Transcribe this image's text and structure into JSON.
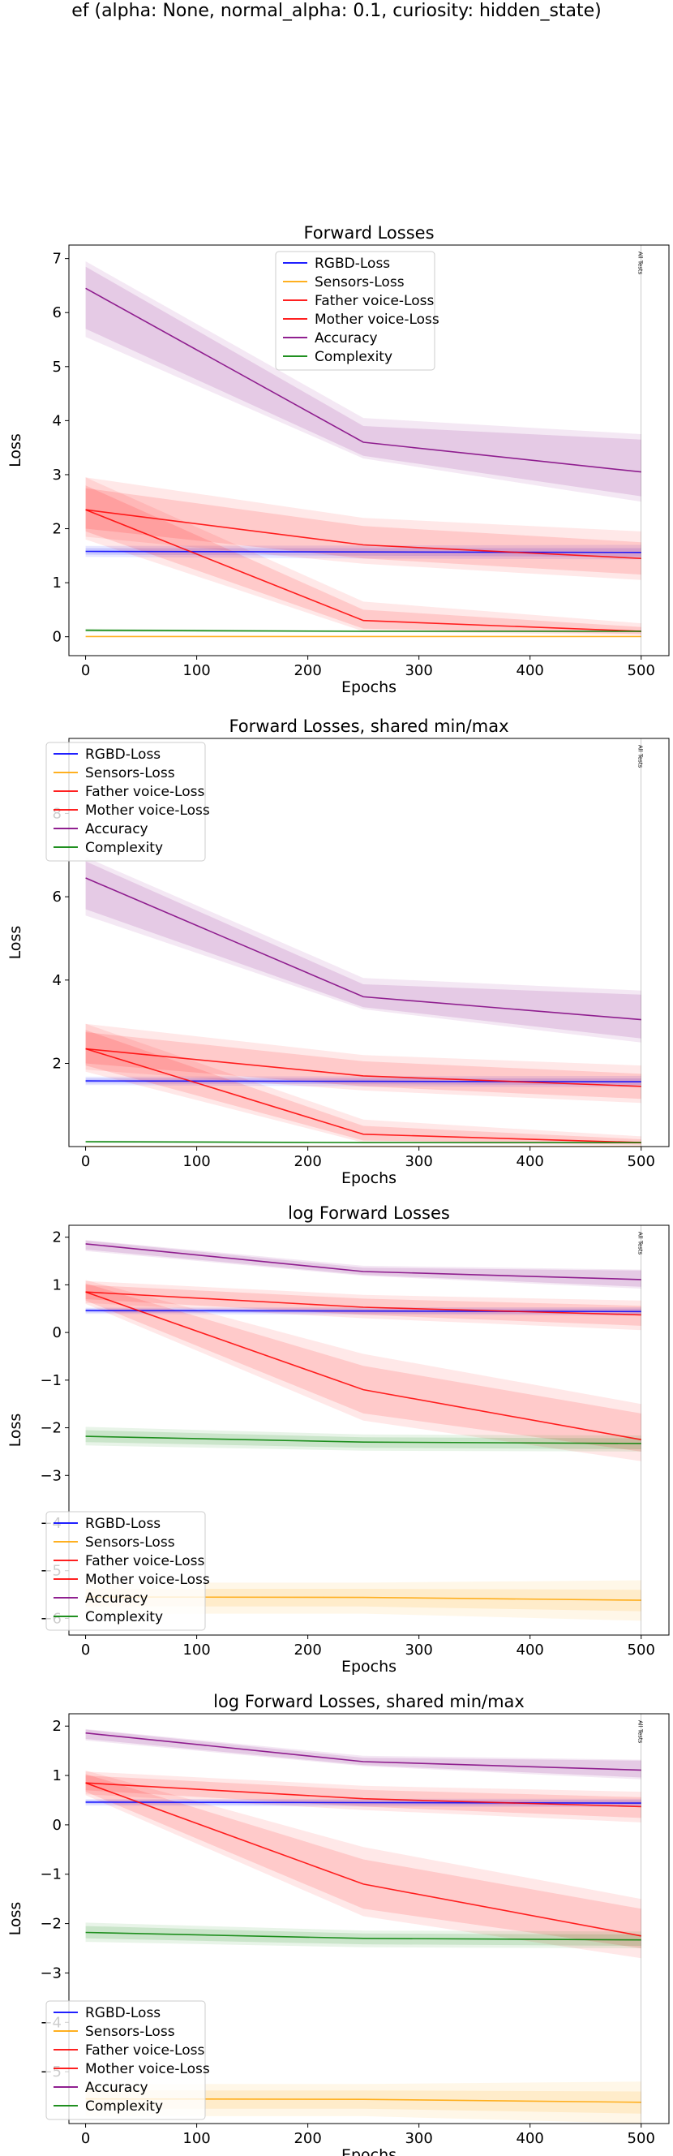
{
  "figure": {
    "suptitle": "ef (alpha: None, normal_alpha: 0.1, curiosity: hidden_state)"
  },
  "legend_entries": [
    {
      "name": "RGBD-Loss",
      "color": "#0000ff"
    },
    {
      "name": "Sensors-Loss",
      "color": "#ffa500"
    },
    {
      "name": "Father voice-Loss",
      "color": "#ff0000"
    },
    {
      "name": "Mother voice-Loss",
      "color": "#ff0000"
    },
    {
      "name": "Accuracy",
      "color": "#800080"
    },
    {
      "name": "Complexity",
      "color": "#008000"
    }
  ],
  "chart_data": [
    {
      "type": "line",
      "title": "Forward Losses",
      "xlabel": "Epochs",
      "ylabel": "Loss",
      "xlim": [
        -15,
        525
      ],
      "ylim": [
        -0.35,
        7.25
      ],
      "xticks": [
        0,
        100,
        200,
        300,
        400,
        500
      ],
      "yticks": [
        0,
        1,
        2,
        3,
        4,
        5,
        6,
        7
      ],
      "legend_loc": "upper center",
      "vline": {
        "x": 500,
        "label": "All Tests"
      },
      "x": [
        0,
        250,
        500
      ],
      "series": [
        {
          "name": "RGBD-Loss",
          "color": "#0000ff",
          "values": [
            1.58,
            1.57,
            1.56
          ],
          "band_inner": [
            [
              1.52,
              1.64
            ],
            [
              1.5,
              1.64
            ],
            [
              1.48,
              1.64
            ]
          ],
          "band_outer": [
            [
              1.48,
              1.68
            ],
            [
              1.45,
              1.69
            ],
            [
              1.43,
              1.7
            ]
          ]
        },
        {
          "name": "Sensors-Loss",
          "color": "#ffa500",
          "values": [
            0.004,
            0.004,
            0.004
          ],
          "band_inner": [
            [
              0.003,
              0.005
            ],
            [
              0.003,
              0.005
            ],
            [
              0.003,
              0.005
            ]
          ],
          "band_outer": [
            [
              0.002,
              0.006
            ],
            [
              0.002,
              0.006
            ],
            [
              0.002,
              0.006
            ]
          ]
        },
        {
          "name": "Father voice-Loss",
          "color": "#ff0000",
          "values": [
            2.35,
            1.7,
            1.45
          ],
          "band_inner": [
            [
              2.0,
              2.75
            ],
            [
              1.45,
              2.05
            ],
            [
              1.15,
              1.75
            ]
          ],
          "band_outer": [
            [
              1.85,
              2.95
            ],
            [
              1.35,
              2.2
            ],
            [
              1.05,
              1.95
            ]
          ]
        },
        {
          "name": "Mother voice-Loss",
          "color": "#ff0000",
          "values": [
            2.35,
            0.3,
            0.1
          ],
          "band_inner": [
            [
              1.95,
              2.8
            ],
            [
              0.15,
              0.5
            ],
            [
              0.05,
              0.18
            ]
          ],
          "band_outer": [
            [
              1.8,
              2.95
            ],
            [
              0.1,
              0.65
            ],
            [
              0.03,
              0.25
            ]
          ]
        },
        {
          "name": "Accuracy",
          "color": "#800080",
          "values": [
            6.45,
            3.6,
            3.05
          ],
          "band_inner": [
            [
              5.7,
              6.85
            ],
            [
              3.35,
              3.9
            ],
            [
              2.6,
              3.65
            ]
          ],
          "band_outer": [
            [
              5.55,
              6.95
            ],
            [
              3.3,
              4.05
            ],
            [
              2.5,
              3.75
            ]
          ]
        },
        {
          "name": "Complexity",
          "color": "#008000",
          "values": [
            0.12,
            0.1,
            0.1
          ],
          "band_inner": [
            [
              0.1,
              0.14
            ],
            [
              0.09,
              0.11
            ],
            [
              0.09,
              0.11
            ]
          ],
          "band_outer": [
            [
              0.09,
              0.15
            ],
            [
              0.08,
              0.12
            ],
            [
              0.08,
              0.12
            ]
          ]
        }
      ]
    },
    {
      "type": "line",
      "title": "Forward Losses, shared min/max",
      "xlabel": "Epochs",
      "ylabel": "Loss",
      "xlim": [
        -15,
        525
      ],
      "ylim": [
        0.004,
        9.8
      ],
      "xticks": [
        0,
        100,
        200,
        300,
        400,
        500
      ],
      "yticks": [
        2,
        4,
        6,
        8
      ],
      "legend_loc": "upper left",
      "vline": {
        "x": 500,
        "label": "All Tests"
      },
      "x": [
        0,
        250,
        500
      ],
      "series": [
        {
          "name": "RGBD-Loss",
          "color": "#0000ff",
          "values": [
            1.58,
            1.57,
            1.56
          ],
          "band_inner": [
            [
              1.52,
              1.64
            ],
            [
              1.5,
              1.64
            ],
            [
              1.48,
              1.64
            ]
          ],
          "band_outer": [
            [
              1.48,
              1.68
            ],
            [
              1.45,
              1.69
            ],
            [
              1.43,
              1.7
            ]
          ]
        },
        {
          "name": "Sensors-Loss",
          "color": "#ffa500",
          "values": [
            0.004,
            0.004,
            0.004
          ],
          "band_inner": [
            [
              0.003,
              0.005
            ],
            [
              0.003,
              0.005
            ],
            [
              0.003,
              0.005
            ]
          ],
          "band_outer": [
            [
              0.002,
              0.006
            ],
            [
              0.002,
              0.006
            ],
            [
              0.002,
              0.006
            ]
          ]
        },
        {
          "name": "Father voice-Loss",
          "color": "#ff0000",
          "values": [
            2.35,
            1.7,
            1.45
          ],
          "band_inner": [
            [
              2.0,
              2.75
            ],
            [
              1.45,
              2.05
            ],
            [
              1.15,
              1.75
            ]
          ],
          "band_outer": [
            [
              1.85,
              2.95
            ],
            [
              1.35,
              2.2
            ],
            [
              1.05,
              1.95
            ]
          ]
        },
        {
          "name": "Mother voice-Loss",
          "color": "#ff0000",
          "values": [
            2.35,
            0.3,
            0.1
          ],
          "band_inner": [
            [
              1.95,
              2.8
            ],
            [
              0.15,
              0.5
            ],
            [
              0.05,
              0.18
            ]
          ],
          "band_outer": [
            [
              1.8,
              2.95
            ],
            [
              0.1,
              0.65
            ],
            [
              0.03,
              0.25
            ]
          ]
        },
        {
          "name": "Accuracy",
          "color": "#800080",
          "values": [
            6.45,
            3.6,
            3.05
          ],
          "band_inner": [
            [
              5.7,
              6.85
            ],
            [
              3.35,
              3.9
            ],
            [
              2.6,
              3.65
            ]
          ],
          "band_outer": [
            [
              5.55,
              6.95
            ],
            [
              3.3,
              4.05
            ],
            [
              2.5,
              3.75
            ]
          ]
        },
        {
          "name": "Complexity",
          "color": "#008000",
          "values": [
            0.12,
            0.1,
            0.1
          ],
          "band_inner": [
            [
              0.1,
              0.14
            ],
            [
              0.09,
              0.11
            ],
            [
              0.09,
              0.11
            ]
          ],
          "band_outer": [
            [
              0.09,
              0.15
            ],
            [
              0.08,
              0.12
            ],
            [
              0.08,
              0.12
            ]
          ]
        }
      ]
    },
    {
      "type": "line",
      "title": "log Forward Losses",
      "xlabel": "Epochs",
      "ylabel": "Loss",
      "xlim": [
        -15,
        525
      ],
      "ylim": [
        -6.35,
        2.25
      ],
      "xticks": [
        0,
        100,
        200,
        300,
        400,
        500
      ],
      "yticks": [
        -6,
        -5,
        -4,
        -3,
        -2,
        -1,
        0,
        1,
        2
      ],
      "legend_loc": "lower left",
      "vline": {
        "x": 500,
        "label": "All Tests"
      },
      "x": [
        0,
        250,
        500
      ],
      "series": [
        {
          "name": "RGBD-Loss",
          "color": "#0000ff",
          "values": [
            0.46,
            0.45,
            0.44
          ],
          "band_inner": [
            [
              0.42,
              0.5
            ],
            [
              0.4,
              0.5
            ],
            [
              0.39,
              0.5
            ]
          ],
          "band_outer": [
            [
              0.39,
              0.52
            ],
            [
              0.37,
              0.53
            ],
            [
              0.36,
              0.53
            ]
          ]
        },
        {
          "name": "Sensors-Loss",
          "color": "#ffa500",
          "values": [
            -5.55,
            -5.56,
            -5.62
          ],
          "band_inner": [
            [
              -5.75,
              -5.38
            ],
            [
              -5.75,
              -5.38
            ],
            [
              -5.85,
              -5.4
            ]
          ],
          "band_outer": [
            [
              -5.9,
              -5.25
            ],
            [
              -5.9,
              -5.25
            ],
            [
              -6.05,
              -5.2
            ]
          ]
        },
        {
          "name": "Father voice-Loss",
          "color": "#ff0000",
          "values": [
            0.85,
            0.53,
            0.37
          ],
          "band_inner": [
            [
              0.7,
              1.0
            ],
            [
              0.37,
              0.71
            ],
            [
              0.14,
              0.56
            ]
          ],
          "band_outer": [
            [
              0.62,
              1.08
            ],
            [
              0.3,
              0.79
            ],
            [
              0.05,
              0.67
            ]
          ]
        },
        {
          "name": "Mother voice-Loss",
          "color": "#ff0000",
          "values": [
            0.85,
            -1.2,
            -2.25
          ],
          "band_inner": [
            [
              0.67,
              1.03
            ],
            [
              -1.7,
              -0.7
            ],
            [
              -2.5,
              -1.7
            ]
          ],
          "band_outer": [
            [
              0.6,
              1.1
            ],
            [
              -1.85,
              -0.45
            ],
            [
              -2.7,
              -1.5
            ]
          ]
        },
        {
          "name": "Accuracy",
          "color": "#800080",
          "values": [
            1.86,
            1.28,
            1.11
          ],
          "band_inner": [
            [
              1.74,
              1.93
            ],
            [
              1.21,
              1.36
            ],
            [
              0.96,
              1.3
            ]
          ],
          "band_outer": [
            [
              1.71,
              1.94
            ],
            [
              1.19,
              1.4
            ],
            [
              0.92,
              1.32
            ]
          ]
        },
        {
          "name": "Complexity",
          "color": "#008000",
          "values": [
            -2.18,
            -2.3,
            -2.33
          ],
          "band_inner": [
            [
              -2.3,
              -2.05
            ],
            [
              -2.42,
              -2.2
            ],
            [
              -2.45,
              -2.22
            ]
          ],
          "band_outer": [
            [
              -2.37,
              -1.98
            ],
            [
              -2.48,
              -2.14
            ],
            [
              -2.5,
              -2.16
            ]
          ]
        }
      ]
    },
    {
      "type": "line",
      "title": "log Forward Losses, shared min/max",
      "xlabel": "Epochs",
      "ylabel": "Loss",
      "xlim": [
        -15,
        525
      ],
      "ylim": [
        -6.05,
        2.25
      ],
      "xticks": [
        0,
        100,
        200,
        300,
        400,
        500
      ],
      "yticks": [
        -5,
        -4,
        -3,
        -2,
        -1,
        0,
        1,
        2
      ],
      "legend_loc": "lower left",
      "vline": {
        "x": 500,
        "label": "All Tests"
      },
      "x": [
        0,
        250,
        500
      ],
      "series": [
        {
          "name": "RGBD-Loss",
          "color": "#0000ff",
          "values": [
            0.46,
            0.45,
            0.44
          ],
          "band_inner": [
            [
              0.42,
              0.5
            ],
            [
              0.4,
              0.5
            ],
            [
              0.39,
              0.5
            ]
          ],
          "band_outer": [
            [
              0.39,
              0.52
            ],
            [
              0.37,
              0.53
            ],
            [
              0.36,
              0.53
            ]
          ]
        },
        {
          "name": "Sensors-Loss",
          "color": "#ffa500",
          "values": [
            -5.55,
            -5.56,
            -5.62
          ],
          "band_inner": [
            [
              -5.75,
              -5.38
            ],
            [
              -5.75,
              -5.38
            ],
            [
              -5.85,
              -5.4
            ]
          ],
          "band_outer": [
            [
              -5.9,
              -5.25
            ],
            [
              -5.9,
              -5.25
            ],
            [
              -6.05,
              -5.2
            ]
          ]
        },
        {
          "name": "Father voice-Loss",
          "color": "#ff0000",
          "values": [
            0.85,
            0.53,
            0.37
          ],
          "band_inner": [
            [
              0.7,
              1.0
            ],
            [
              0.37,
              0.71
            ],
            [
              0.14,
              0.56
            ]
          ],
          "band_outer": [
            [
              0.62,
              1.08
            ],
            [
              0.3,
              0.79
            ],
            [
              0.05,
              0.67
            ]
          ]
        },
        {
          "name": "Mother voice-Loss",
          "color": "#ff0000",
          "values": [
            0.85,
            -1.2,
            -2.25
          ],
          "band_inner": [
            [
              0.67,
              1.03
            ],
            [
              -1.7,
              -0.7
            ],
            [
              -2.5,
              -1.7
            ]
          ],
          "band_outer": [
            [
              0.6,
              1.1
            ],
            [
              -1.85,
              -0.45
            ],
            [
              -2.7,
              -1.5
            ]
          ]
        },
        {
          "name": "Accuracy",
          "color": "#800080",
          "values": [
            1.86,
            1.28,
            1.11
          ],
          "band_inner": [
            [
              1.74,
              1.93
            ],
            [
              1.21,
              1.36
            ],
            [
              0.96,
              1.3
            ]
          ],
          "band_outer": [
            [
              1.71,
              1.94
            ],
            [
              1.19,
              1.4
            ],
            [
              0.92,
              1.32
            ]
          ]
        },
        {
          "name": "Complexity",
          "color": "#008000",
          "values": [
            -2.18,
            -2.3,
            -2.33
          ],
          "band_inner": [
            [
              -2.3,
              -2.05
            ],
            [
              -2.42,
              -2.2
            ],
            [
              -2.45,
              -2.22
            ]
          ],
          "band_outer": [
            [
              -2.37,
              -1.98
            ],
            [
              -2.48,
              -2.14
            ],
            [
              -2.5,
              -2.16
            ]
          ]
        }
      ]
    }
  ]
}
